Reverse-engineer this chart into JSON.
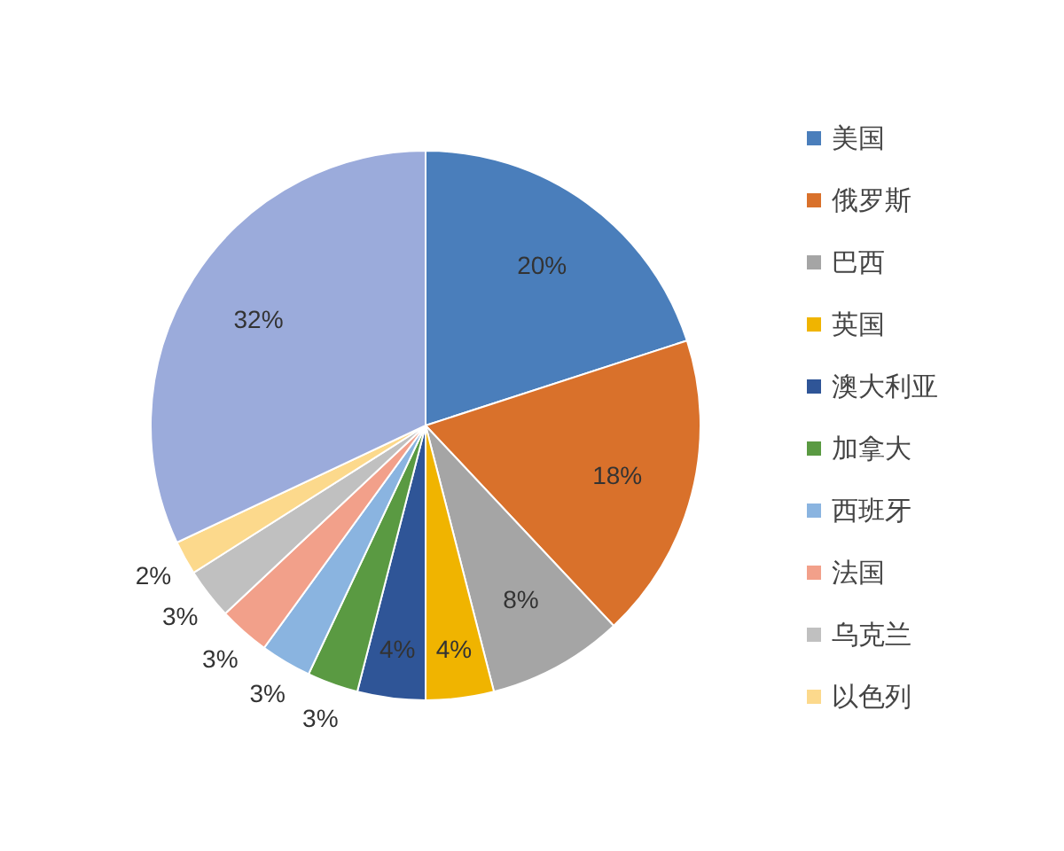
{
  "chart_data": {
    "type": "pie",
    "legend": "right",
    "categories": [
      "美国",
      "俄罗斯",
      "巴西",
      "英国",
      "澳大利亚",
      "加拿大",
      "西班牙",
      "法国",
      "乌克兰",
      "以色列",
      null
    ],
    "values": [
      20,
      18,
      8,
      4,
      4,
      3,
      3,
      3,
      3,
      2,
      32
    ],
    "value_labels": [
      "20%",
      "18%",
      "8%",
      "4%",
      "4%",
      "3%",
      "3%",
      "3%",
      "3%",
      "2%",
      "32%"
    ],
    "colors": [
      "#4a7ebb",
      "#d9712b",
      "#a5a5a5",
      "#f0b400",
      "#2f5597",
      "#5a9a42",
      "#8ab4e0",
      "#f2a08a",
      "#c0c0c0",
      "#fcd98c",
      "#9babdb"
    ]
  }
}
